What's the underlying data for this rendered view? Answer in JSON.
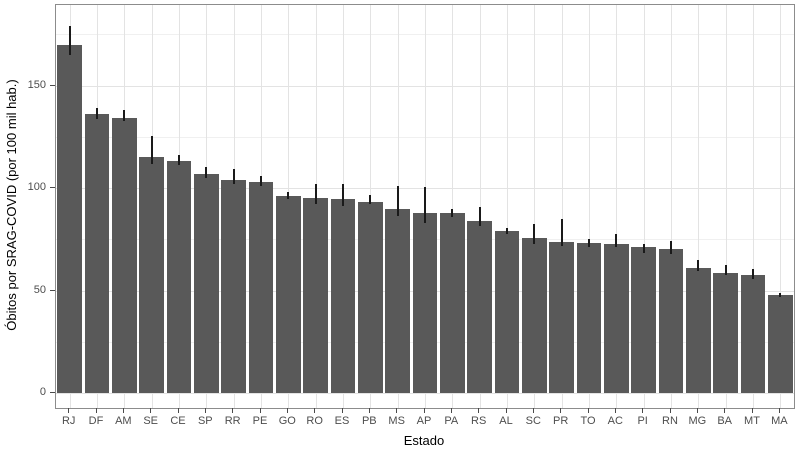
{
  "chart_data": {
    "type": "bar",
    "title": "",
    "xlabel": "Estado",
    "ylabel": "Óbitos por SRAG-COVID (por 100 mil hab.)",
    "legend": "none",
    "grid": true,
    "categories": [
      "RJ",
      "DF",
      "AM",
      "SE",
      "CE",
      "SP",
      "RR",
      "PE",
      "GO",
      "RO",
      "ES",
      "PB",
      "MS",
      "AP",
      "PA",
      "RS",
      "AL",
      "SC",
      "PR",
      "TO",
      "AC",
      "PI",
      "RN",
      "MG",
      "BA",
      "MT",
      "MA"
    ],
    "values": [
      170,
      136,
      134,
      115,
      113,
      107,
      104,
      103,
      96,
      95,
      94.5,
      93,
      90,
      88,
      88,
      84,
      79,
      75.5,
      73.5,
      73,
      72.5,
      71,
      70.5,
      61,
      58.5,
      57.5,
      48
    ],
    "error_low": [
      165,
      133.5,
      132.5,
      111.5,
      111,
      105,
      102,
      101,
      94.5,
      92,
      91,
      92,
      86.5,
      83,
      86,
      81.5,
      77.5,
      72.5,
      71.5,
      71,
      71,
      68.5,
      68,
      59.5,
      57.5,
      55.5,
      47
    ],
    "error_high": [
      179,
      139,
      138,
      125.5,
      116,
      110.5,
      109.5,
      106,
      98,
      102,
      102,
      96.5,
      101,
      100.5,
      90,
      91,
      80.5,
      82.5,
      85,
      75,
      77.5,
      72.5,
      74,
      65,
      62.5,
      60.5,
      49
    ],
    "yticks": [
      0,
      50,
      100,
      150
    ],
    "ylim": [
      -7.3,
      189.3
    ],
    "grid_major": [
      0,
      50,
      100,
      150
    ],
    "grid_minor": [
      25,
      75,
      125,
      175
    ],
    "colors": {
      "bar": "#595959",
      "error_bar": "#1a1a1a",
      "grid_major": "#e3e3e3",
      "grid_minor": "#f0f0f0",
      "panel_border": "#8c8c8c",
      "tick_mark": "#4a4a4a",
      "tick_label": "#4d4d4d",
      "axis_title": "#000000",
      "background": "#ffffff"
    }
  }
}
